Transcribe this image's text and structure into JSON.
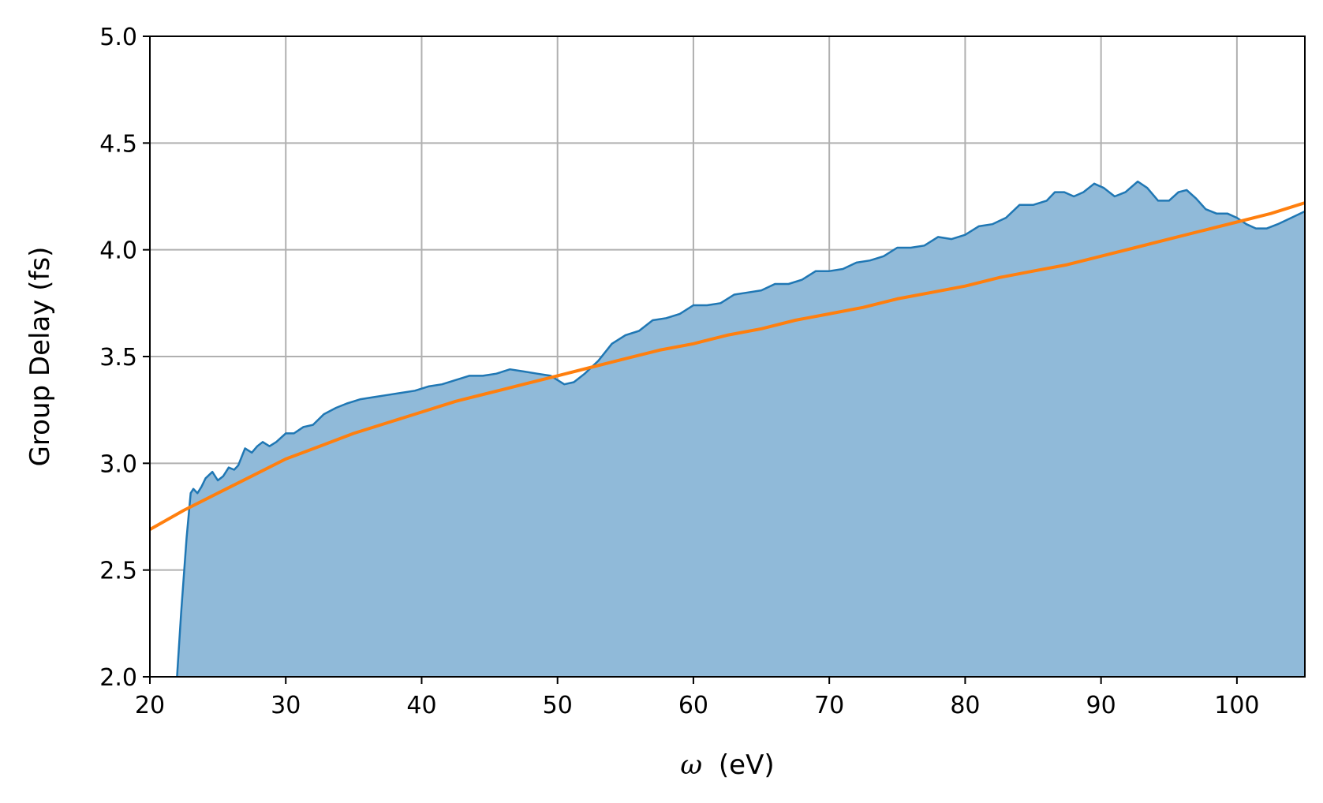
{
  "chart_data": {
    "type": "area",
    "title": "",
    "xlabel": {
      "symbol": "ω",
      "unit": "(eV)"
    },
    "ylabel": "Group Delay (fs)",
    "xlim": [
      20,
      105
    ],
    "ylim": [
      2.0,
      5.0
    ],
    "grid": true,
    "x_ticks": [
      20,
      30,
      40,
      50,
      60,
      70,
      80,
      90,
      100
    ],
    "x_tick_labels": [
      "20",
      "30",
      "40",
      "50",
      "60",
      "70",
      "80",
      "90",
      "100"
    ],
    "y_ticks": [
      2.0,
      2.5,
      3.0,
      3.5,
      4.0,
      4.5,
      5.0
    ],
    "y_tick_labels": [
      "2.0",
      "2.5",
      "3.0",
      "3.5",
      "4.0",
      "4.5",
      "5.0"
    ],
    "colors": {
      "area_fill": "#90bad9",
      "area_line": "#1f77b4",
      "fit_line": "#ff7f0e",
      "grid": "#b0b0b0"
    },
    "series": [
      {
        "type": "area",
        "x": [
          22.0,
          22.3,
          22.7,
          23.0,
          23.2,
          23.5,
          23.8,
          24.1,
          24.6,
          25.0,
          25.4,
          25.8,
          26.2,
          26.5,
          27.0,
          27.5,
          27.9,
          28.3,
          28.8,
          29.3,
          30.0,
          30.6,
          31.3,
          32.0,
          32.8,
          33.7,
          34.5,
          35.5,
          36.5,
          37.5,
          38.5,
          39.5,
          40.5,
          41.5,
          42.5,
          43.5,
          44.5,
          45.5,
          46.5,
          47.5,
          48.5,
          49.5,
          50.0,
          50.5,
          51.2,
          52.0,
          53.0,
          54.0,
          55.0,
          56.0,
          57.0,
          58.0,
          59.0,
          60.0,
          61.0,
          62.0,
          63.0,
          64.0,
          65.0,
          66.0,
          67.0,
          68.0,
          69.0,
          70.0,
          71.0,
          72.0,
          73.0,
          74.0,
          75.0,
          76.0,
          77.0,
          78.0,
          79.0,
          80.0,
          81.0,
          82.0,
          83.0,
          84.0,
          85.0,
          86.0,
          86.6,
          87.3,
          88.0,
          88.7,
          89.5,
          90.2,
          91.0,
          91.8,
          92.7,
          93.4,
          94.2,
          95.0,
          95.7,
          96.3,
          97.0,
          97.7,
          98.5,
          99.3,
          100.0,
          100.7,
          101.4,
          102.2,
          103.0,
          104.0,
          105.0
        ],
        "y": [
          2.0,
          2.3,
          2.65,
          2.86,
          2.88,
          2.86,
          2.89,
          2.93,
          2.96,
          2.92,
          2.94,
          2.98,
          2.97,
          2.99,
          3.07,
          3.05,
          3.08,
          3.1,
          3.08,
          3.1,
          3.14,
          3.14,
          3.17,
          3.18,
          3.23,
          3.26,
          3.28,
          3.3,
          3.31,
          3.32,
          3.33,
          3.34,
          3.36,
          3.37,
          3.39,
          3.41,
          3.41,
          3.42,
          3.44,
          3.43,
          3.42,
          3.41,
          3.39,
          3.37,
          3.38,
          3.42,
          3.48,
          3.56,
          3.6,
          3.62,
          3.67,
          3.68,
          3.7,
          3.74,
          3.74,
          3.75,
          3.79,
          3.8,
          3.81,
          3.84,
          3.84,
          3.86,
          3.9,
          3.9,
          3.91,
          3.94,
          3.95,
          3.97,
          4.01,
          4.01,
          4.02,
          4.06,
          4.05,
          4.07,
          4.11,
          4.12,
          4.15,
          4.21,
          4.21,
          4.23,
          4.27,
          4.27,
          4.25,
          4.27,
          4.31,
          4.29,
          4.25,
          4.27,
          4.32,
          4.29,
          4.23,
          4.23,
          4.27,
          4.28,
          4.24,
          4.19,
          4.17,
          4.17,
          4.15,
          4.12,
          4.1,
          4.1,
          4.12,
          4.15,
          4.18
        ]
      },
      {
        "type": "line",
        "x": [
          20,
          22.5,
          25,
          27.5,
          30,
          32.5,
          35,
          37.5,
          40,
          42.5,
          45,
          47.5,
          50,
          52.5,
          55,
          57.5,
          60,
          62.5,
          65,
          67.5,
          70,
          72.5,
          75,
          77.5,
          80,
          82.5,
          85,
          87.5,
          90,
          92.5,
          95,
          97.5,
          100,
          102.5,
          105
        ],
        "y": [
          2.69,
          2.78,
          2.86,
          2.94,
          3.02,
          3.08,
          3.14,
          3.19,
          3.24,
          3.29,
          3.33,
          3.37,
          3.41,
          3.45,
          3.49,
          3.53,
          3.56,
          3.6,
          3.63,
          3.67,
          3.7,
          3.73,
          3.77,
          3.8,
          3.83,
          3.87,
          3.9,
          3.93,
          3.97,
          4.01,
          4.05,
          4.09,
          4.13,
          4.17,
          4.22
        ]
      }
    ]
  }
}
